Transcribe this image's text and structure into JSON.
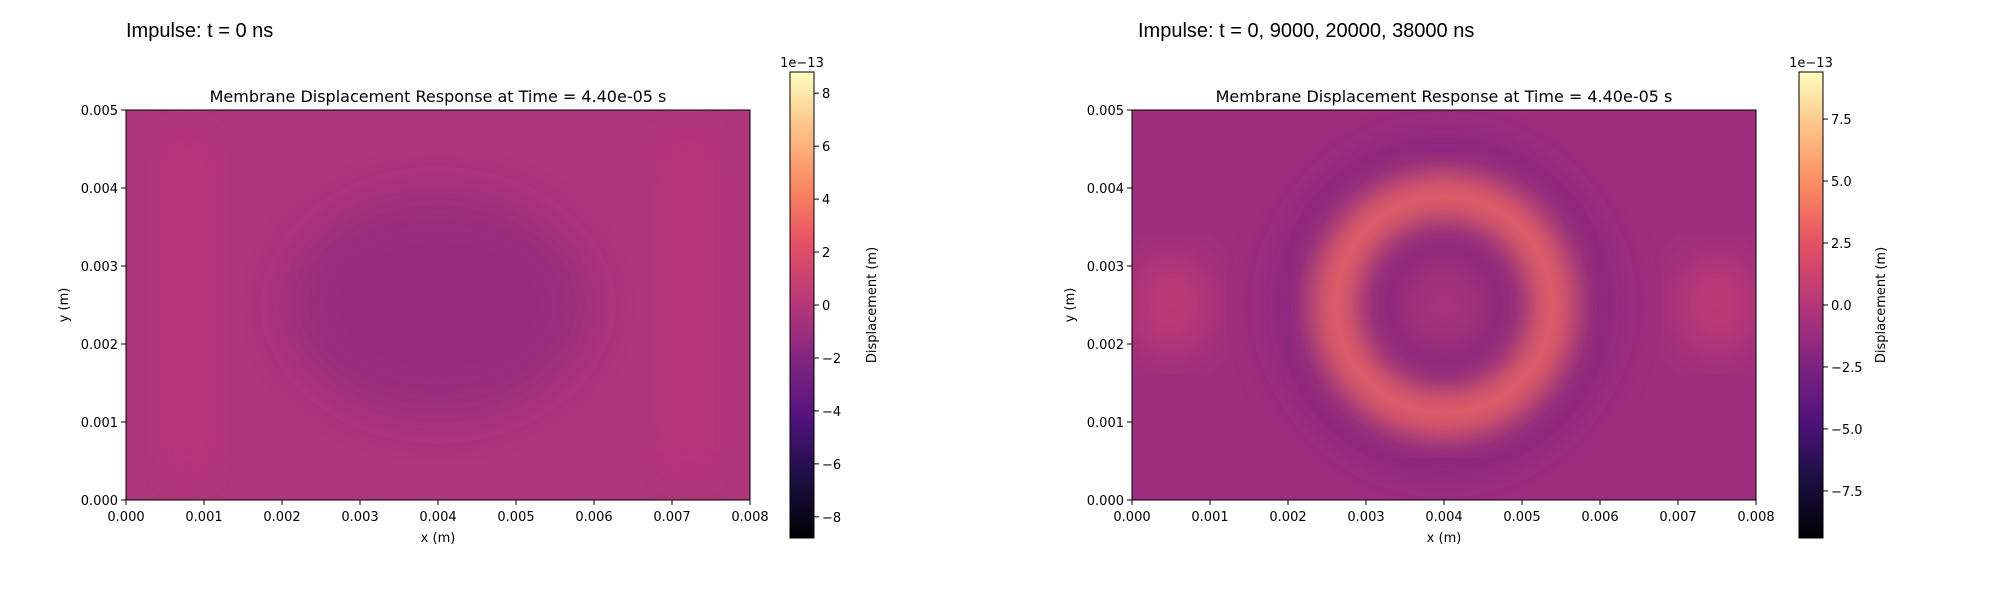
{
  "panels": [
    {
      "heading": "Impulse: t = 0 ns"
    },
    {
      "heading": "Impulse: t = 0, 9000, 20000, 38000 ns"
    }
  ],
  "chart_data": [
    {
      "type": "heatmap",
      "title": "Membrane Displacement Response at Time = 4.40e-05 s",
      "xlabel": "x (m)",
      "ylabel": "y (m)",
      "xlim": [
        0.0,
        0.008
      ],
      "ylim": [
        0.0,
        0.005
      ],
      "x_ticks": [
        "0.000",
        "0.001",
        "0.002",
        "0.003",
        "0.004",
        "0.005",
        "0.006",
        "0.007",
        "0.008"
      ],
      "y_ticks": [
        "0.000",
        "0.001",
        "0.002",
        "0.003",
        "0.004",
        "0.005"
      ],
      "colormap": "magma",
      "colorbar": {
        "label": "Displacement (m)",
        "offset_text": "1e−13",
        "range": [
          -8.8,
          8.8
        ],
        "ticks": [
          -8,
          -6,
          -4,
          -2,
          0,
          2,
          4,
          6,
          8
        ],
        "tick_labels": [
          "−8",
          "−6",
          "−4",
          "−2",
          "0",
          "2",
          "4",
          "6",
          "8"
        ]
      },
      "field": {
        "description_units": "1e-13 m",
        "mean_value": -0.3,
        "min_value": -1.6,
        "max_value": 0.6,
        "features": [
          {
            "kind": "dip",
            "x": 0.004,
            "y": 0.0025,
            "value": -1.6
          },
          {
            "kind": "band",
            "x": 0.0008,
            "value": 0.3
          },
          {
            "kind": "band",
            "x": 0.0072,
            "value": 0.3
          }
        ]
      }
    },
    {
      "type": "heatmap",
      "title": "Membrane Displacement Response at Time = 4.40e-05 s",
      "xlabel": "x (m)",
      "ylabel": "y (m)",
      "xlim": [
        0.0,
        0.008
      ],
      "ylim": [
        0.0,
        0.005
      ],
      "x_ticks": [
        "0.000",
        "0.001",
        "0.002",
        "0.003",
        "0.004",
        "0.005",
        "0.006",
        "0.007",
        "0.008"
      ],
      "y_ticks": [
        "0.000",
        "0.001",
        "0.002",
        "0.003",
        "0.004",
        "0.005"
      ],
      "colormap": "magma",
      "colorbar": {
        "label": "Displacement (m)",
        "offset_text": "1e−13",
        "range": [
          -9.4,
          9.4
        ],
        "ticks": [
          -7.5,
          -5.0,
          -2.5,
          0.0,
          2.5,
          5.0,
          7.5
        ],
        "tick_labels": [
          "−7.5",
          "−5.0",
          "−2.5",
          "0.0",
          "2.5",
          "5.0",
          "7.5"
        ]
      },
      "field": {
        "description_units": "1e-13 m",
        "mean_value": -1.0,
        "min_value": -2.6,
        "max_value": 3.6,
        "features": [
          {
            "kind": "ring",
            "x": 0.004,
            "y": 0.0025,
            "radius_x": 0.0014,
            "radius_y": 0.0014,
            "value": 3.4
          },
          {
            "kind": "spot",
            "x": 0.0005,
            "y": 0.0025,
            "value": 1.0
          },
          {
            "kind": "spot",
            "x": 0.0075,
            "y": 0.0025,
            "value": 1.0
          }
        ]
      }
    }
  ]
}
